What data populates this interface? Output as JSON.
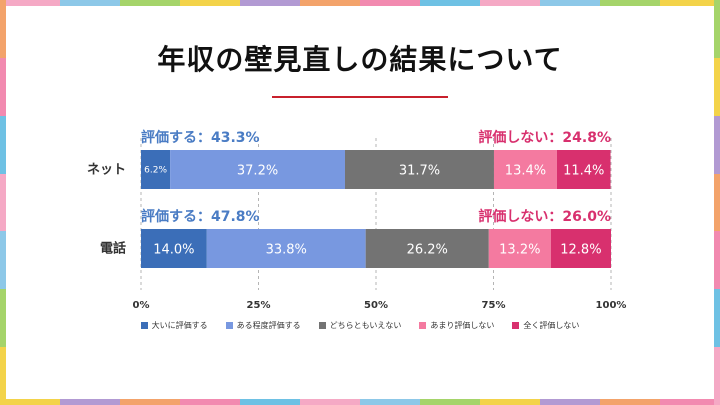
{
  "title": "年収の壁見直しの結果について",
  "colors": {
    "accent_red": "#c8202c",
    "frame": [
      "#f5a9c5",
      "#8dc8e8",
      "#a5d46a",
      "#f3d34a",
      "#b29ad3",
      "#f3a36b",
      "#f28ab0",
      "#6ec1e4"
    ]
  },
  "chart_data": {
    "type": "bar",
    "orientation": "horizontal-stacked-100",
    "categories": [
      "ネット",
      "電話"
    ],
    "series": [
      {
        "name": "大いに評価する",
        "color": "#3b6eb8",
        "values": [
          6.2,
          14.0
        ],
        "labels": [
          "6.2%",
          "14.0%"
        ]
      },
      {
        "name": "ある程度評価する",
        "color": "#7898e0",
        "values": [
          37.2,
          33.8
        ],
        "labels": [
          "37.2%",
          "33.8%"
        ]
      },
      {
        "name": "どちらともいえない",
        "color": "#737373",
        "values": [
          31.7,
          26.2
        ],
        "labels": [
          "31.7%",
          "26.2%"
        ]
      },
      {
        "name": "あまり評価しない",
        "color": "#f47aa0",
        "values": [
          13.4,
          13.2
        ],
        "labels": [
          "13.4%",
          "13.2%"
        ]
      },
      {
        "name": "全く評価しない",
        "color": "#d8306e",
        "values": [
          11.4,
          12.8
        ],
        "labels": [
          "11.4%",
          "12.8%"
        ]
      }
    ],
    "positive_summary": {
      "color": "#4a7cc4",
      "labels": [
        "評価する：43.3%",
        "評価する：47.8%"
      ]
    },
    "negative_summary": {
      "color": "#d8306e",
      "labels": [
        "評価しない：24.8%",
        "評価しない：26.0%"
      ]
    },
    "x_ticks": [
      0,
      25,
      50,
      75,
      100
    ],
    "x_tick_labels": [
      "0%",
      "25%",
      "50%",
      "75%",
      "100%"
    ],
    "xlim": [
      0,
      100
    ],
    "grid": "vertical-dashed",
    "legend_position": "bottom"
  }
}
